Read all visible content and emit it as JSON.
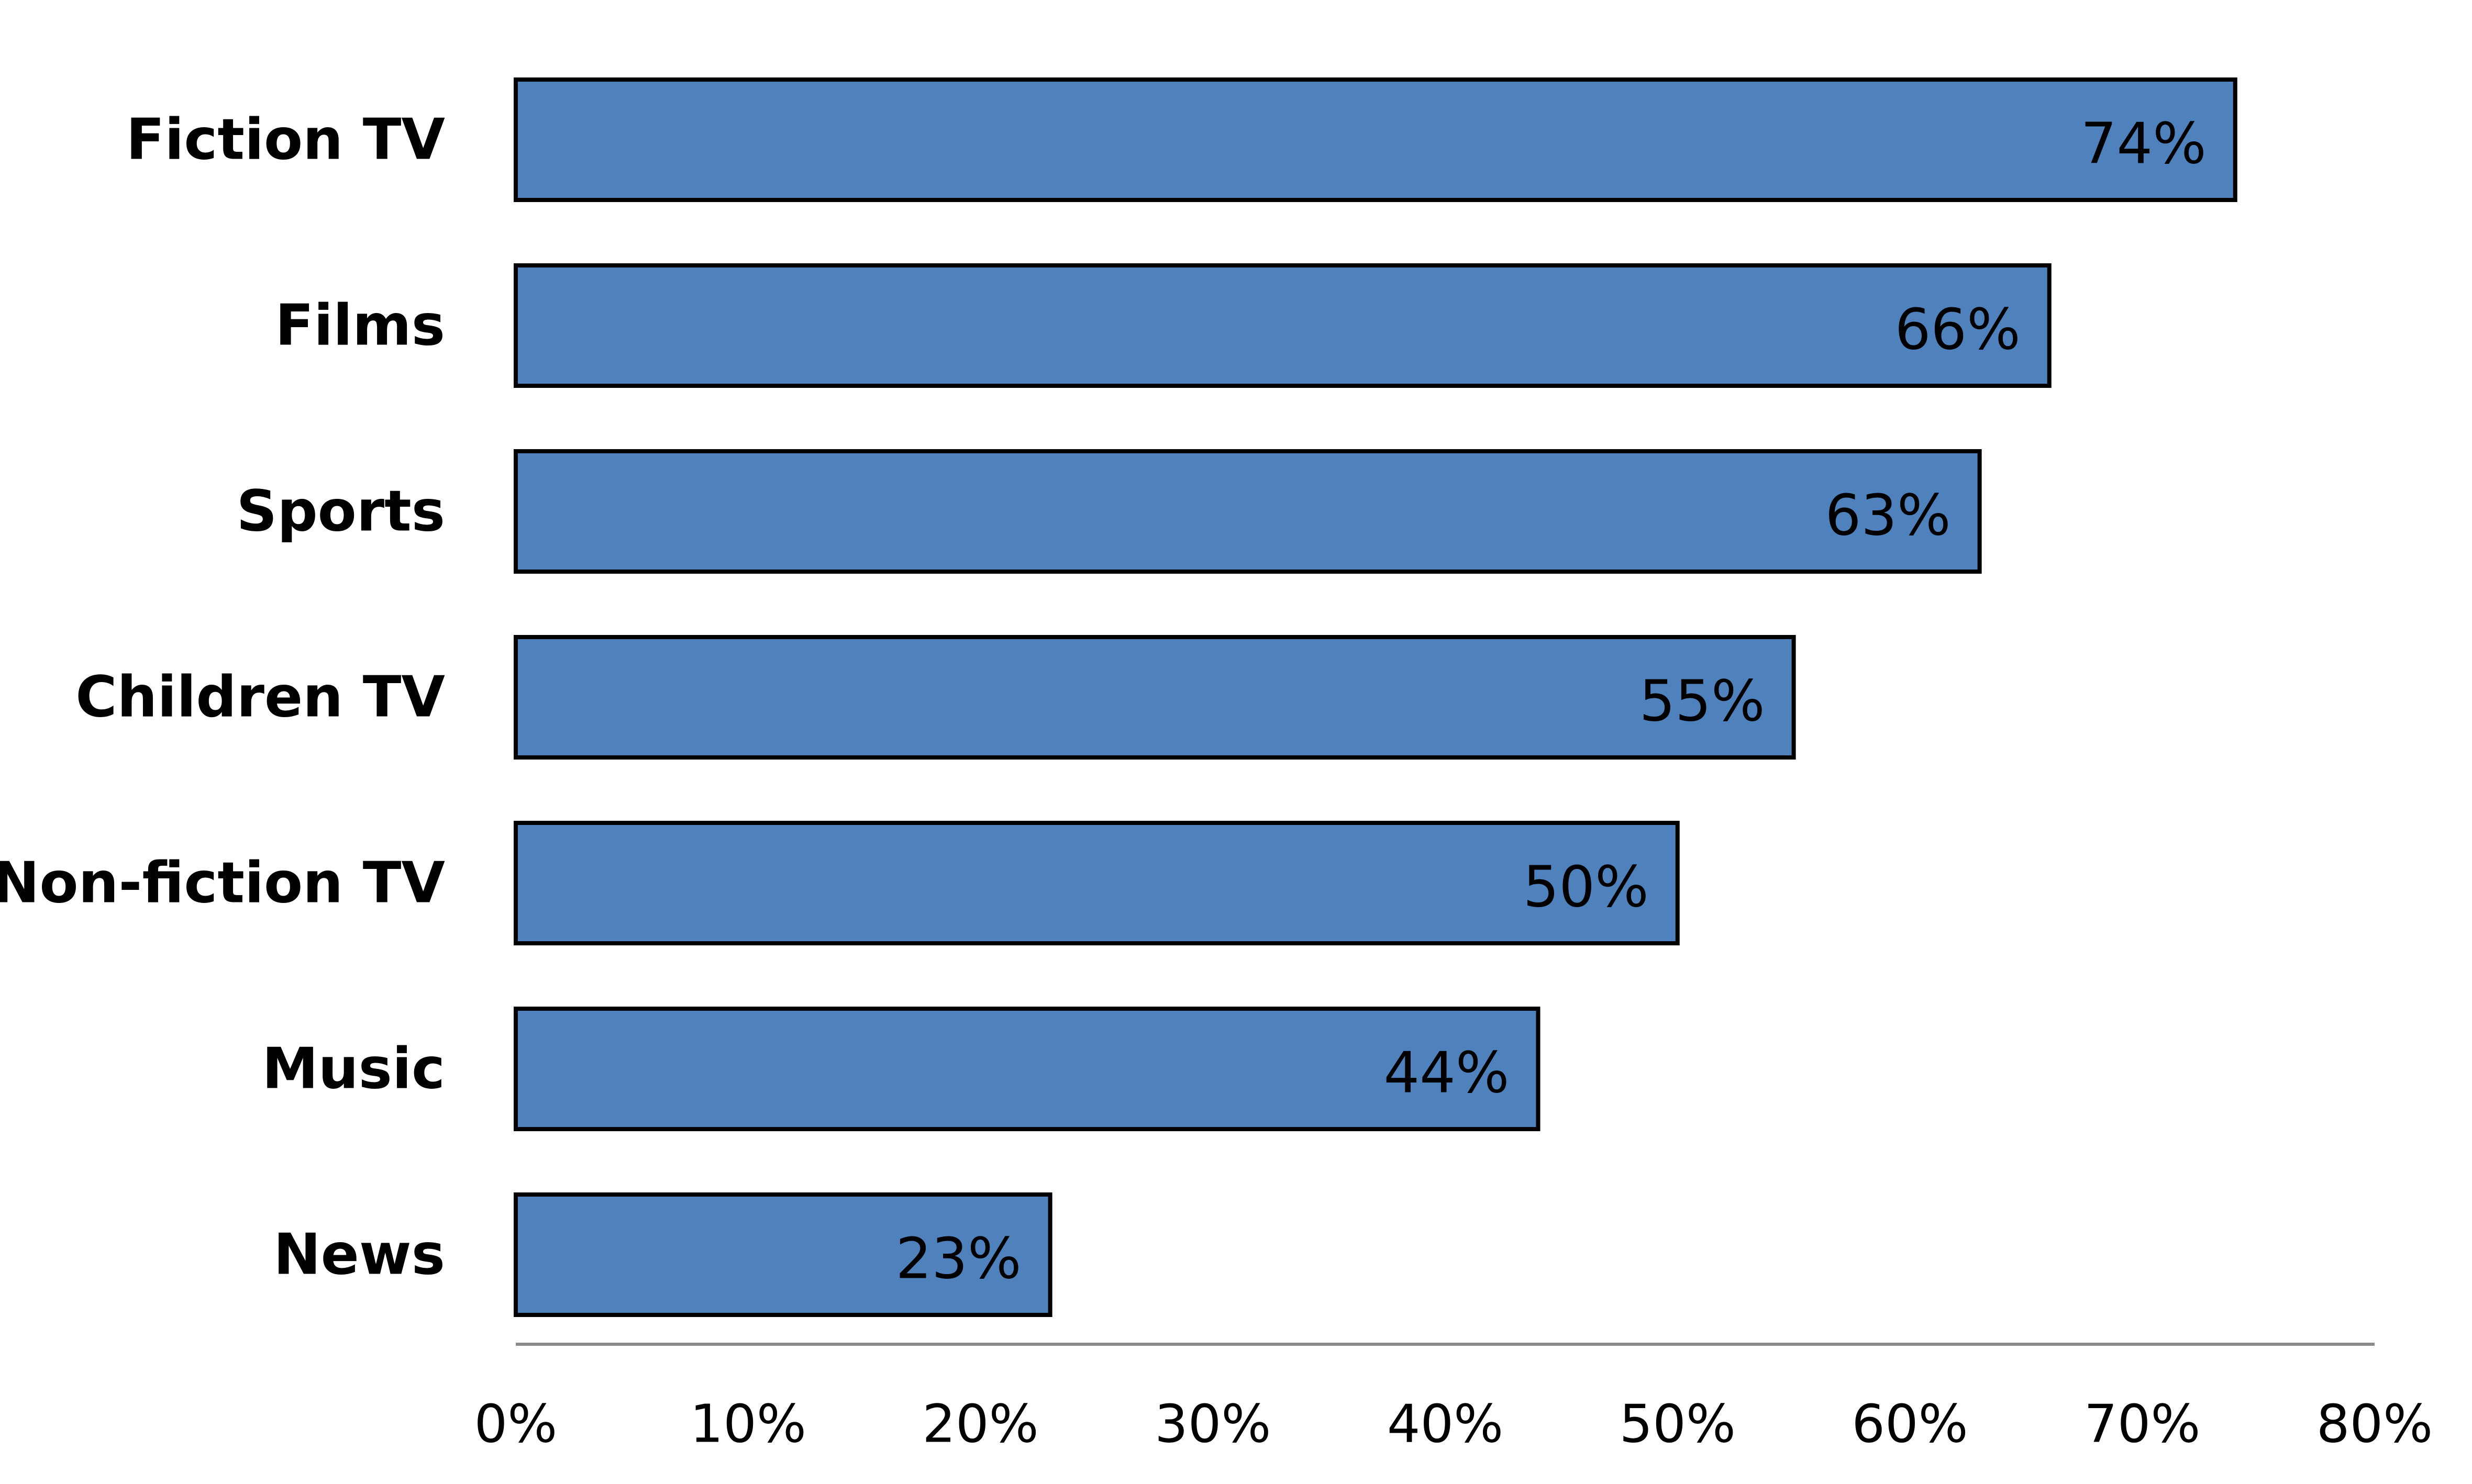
{
  "chart_data": {
    "type": "bar",
    "orientation": "horizontal",
    "categories": [
      "Fiction TV",
      "Films",
      "Sports",
      "Children TV",
      "Non-fiction TV",
      "Music",
      "News"
    ],
    "values": [
      74,
      66,
      63,
      55,
      50,
      44,
      23
    ],
    "value_labels": [
      "74%",
      "66%",
      "63%",
      "55%",
      "50%",
      "44%",
      "23%"
    ],
    "xlim": [
      0,
      80
    ],
    "x_ticks": [
      0,
      10,
      20,
      30,
      40,
      50,
      60,
      70,
      80
    ],
    "x_tick_labels": [
      "0%",
      "10%",
      "20%",
      "30%",
      "40%",
      "50%",
      "60%",
      "70%",
      "80%"
    ],
    "title": "",
    "xlabel": "",
    "ylabel": "",
    "grid": false,
    "legend": "none",
    "colors": {
      "bar_fill": "#4f81bd",
      "bar_stroke": "#000000",
      "axis_line": "#8c8c8c",
      "text": "#000000"
    }
  }
}
